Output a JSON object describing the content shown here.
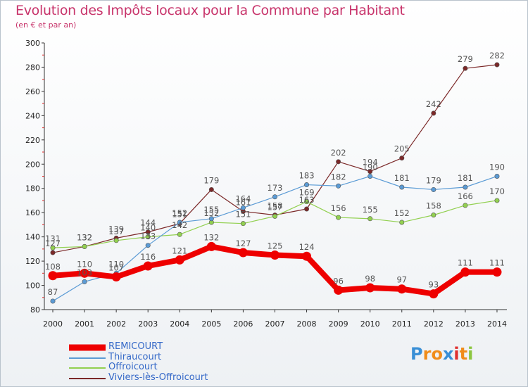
{
  "header": {
    "title": "Evolution des Impôts locaux pour la Commune par Habitant",
    "subtitle": "(en € et par an)"
  },
  "logo": {
    "text": "Proxiti",
    "letters": [
      {
        "ch": "P",
        "color": "#3a8fd6"
      },
      {
        "ch": "r",
        "color": "#f08c1a"
      },
      {
        "ch": "o",
        "color": "#f08c1a"
      },
      {
        "ch": "x",
        "color": "#3a8fd6"
      },
      {
        "ch": "i",
        "color": "#e03030"
      },
      {
        "ch": "t",
        "color": "#f08c1a"
      },
      {
        "ch": "i",
        "color": "#8cc63f"
      }
    ]
  },
  "chart_data": {
    "type": "line",
    "title": "Evolution des Impôts locaux pour la Commune par Habitant",
    "subtitle": "(en € et par an)",
    "x": [
      2000,
      2001,
      2002,
      2003,
      2004,
      2005,
      2006,
      2007,
      2008,
      2009,
      2010,
      2011,
      2012,
      2013,
      2014
    ],
    "ylim": [
      80,
      300
    ],
    "yticks": [
      80,
      100,
      120,
      140,
      160,
      180,
      200,
      220,
      240,
      260,
      280,
      300
    ],
    "grid": false,
    "legend": "bottom-left",
    "series": [
      {
        "name": "REMICOURT",
        "color": "#ee0000",
        "values": [
          108,
          110,
          107,
          116,
          121,
          132,
          127,
          125,
          124,
          96,
          98,
          97,
          93,
          111,
          111
        ]
      },
      {
        "name": "Thiraucourt",
        "color": "#5b9bd5",
        "values": [
          87,
          103,
          110,
          133,
          152,
          155,
          164,
          173,
          183,
          182,
          190,
          181,
          179,
          181,
          190
        ]
      },
      {
        "name": "Offroicourt",
        "color": "#92d050",
        "values": [
          131,
          132,
          137,
          140,
          142,
          152,
          151,
          157,
          169,
          156,
          155,
          152,
          158,
          166,
          170
        ]
      },
      {
        "name": "Viviers-lès-Offroicourt",
        "color": "#7b2828",
        "values": [
          127,
          132,
          139,
          144,
          151,
          179,
          161,
          158,
          163,
          202,
          194,
          205,
          242,
          279,
          282
        ]
      }
    ]
  }
}
